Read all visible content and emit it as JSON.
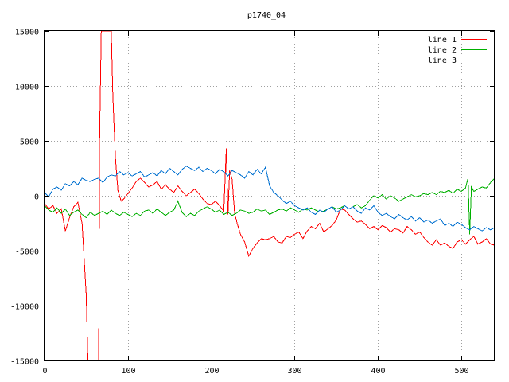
{
  "chart_data": {
    "type": "line",
    "title": "p1740_04",
    "xlabel": "",
    "ylabel": "",
    "xlim": [
      0,
      540
    ],
    "ylim": [
      -15000,
      15000
    ],
    "x_ticks": [
      0,
      100,
      200,
      300,
      400,
      500
    ],
    "y_ticks": [
      -15000,
      -10000,
      -5000,
      0,
      5000,
      10000,
      15000
    ],
    "grid": true,
    "legend_position": "top-right",
    "series": [
      {
        "name": "line 1",
        "color": "#ff0000",
        "x": [
          0,
          5,
          10,
          15,
          20,
          25,
          30,
          35,
          40,
          45,
          50,
          52,
          55,
          60,
          65,
          66,
          68,
          70,
          75,
          80,
          82,
          85,
          88,
          92,
          95,
          100,
          105,
          110,
          115,
          120,
          125,
          130,
          135,
          140,
          145,
          150,
          155,
          160,
          165,
          170,
          175,
          180,
          185,
          190,
          195,
          200,
          205,
          210,
          215,
          218,
          220,
          222,
          225,
          228,
          231,
          235,
          240,
          245,
          250,
          255,
          260,
          265,
          270,
          275,
          280,
          285,
          290,
          295,
          300,
          305,
          310,
          315,
          320,
          325,
          330,
          335,
          340,
          345,
          350,
          355,
          360,
          365,
          370,
          375,
          380,
          385,
          390,
          395,
          400,
          405,
          410,
          415,
          420,
          425,
          430,
          435,
          440,
          445,
          450,
          455,
          460,
          465,
          470,
          475,
          480,
          485,
          490,
          495,
          500,
          505,
          510,
          515,
          520,
          525,
          530,
          535,
          540
        ],
        "values": [
          -700,
          -1200,
          -900,
          -1600,
          -1200,
          -3200,
          -2000,
          -1000,
          -600,
          -2500,
          -9000,
          -15000,
          -15000,
          -15000,
          -15000,
          5000,
          15000,
          15000,
          15000,
          15000,
          9000,
          3500,
          500,
          -500,
          -300,
          200,
          700,
          1300,
          1600,
          1200,
          800,
          1000,
          1300,
          600,
          1000,
          600,
          300,
          900,
          400,
          0,
          300,
          600,
          200,
          -300,
          -700,
          -800,
          -500,
          -900,
          -1400,
          4300,
          -1700,
          2300,
          1500,
          -1600,
          -2500,
          -3500,
          -4200,
          -5500,
          -4800,
          -4300,
          -3900,
          -4000,
          -3900,
          -3700,
          -4200,
          -4300,
          -3700,
          -3800,
          -3500,
          -3300,
          -3900,
          -3200,
          -2800,
          -3000,
          -2500,
          -3300,
          -3000,
          -2700,
          -2200,
          -1200,
          -1300,
          -1700,
          -2100,
          -2400,
          -2300,
          -2600,
          -3000,
          -2800,
          -3100,
          -2700,
          -2900,
          -3300,
          -3000,
          -3100,
          -3400,
          -2800,
          -3100,
          -3500,
          -3300,
          -3800,
          -4200,
          -4500,
          -4000,
          -4500,
          -4300,
          -4600,
          -4800,
          -4200,
          -4000,
          -4400,
          -4000,
          -3700,
          -4400,
          -4200,
          -3900,
          -4400,
          -4500
        ]
      },
      {
        "name": "line 2",
        "color": "#00b000",
        "x": [
          0,
          5,
          10,
          15,
          20,
          25,
          30,
          35,
          40,
          45,
          50,
          55,
          60,
          65,
          70,
          75,
          80,
          85,
          90,
          95,
          100,
          105,
          110,
          115,
          120,
          125,
          130,
          135,
          140,
          145,
          150,
          155,
          160,
          165,
          170,
          175,
          180,
          185,
          190,
          195,
          200,
          205,
          210,
          215,
          220,
          225,
          230,
          235,
          240,
          245,
          250,
          255,
          260,
          265,
          270,
          275,
          280,
          285,
          290,
          295,
          300,
          305,
          310,
          315,
          320,
          325,
          330,
          335,
          340,
          345,
          350,
          355,
          360,
          365,
          370,
          375,
          380,
          385,
          390,
          395,
          400,
          405,
          410,
          415,
          420,
          425,
          430,
          435,
          440,
          445,
          450,
          455,
          460,
          465,
          470,
          475,
          480,
          485,
          490,
          495,
          500,
          505,
          508,
          510,
          512,
          515,
          520,
          525,
          530,
          535,
          540
        ],
        "values": [
          -900,
          -1300,
          -1500,
          -1100,
          -1600,
          -1200,
          -1800,
          -1500,
          -1300,
          -1700,
          -2000,
          -1500,
          -1800,
          -1600,
          -1400,
          -1700,
          -1300,
          -1600,
          -1800,
          -1500,
          -1700,
          -1900,
          -1600,
          -1800,
          -1400,
          -1300,
          -1600,
          -1200,
          -1500,
          -1800,
          -1500,
          -1300,
          -500,
          -1500,
          -1900,
          -1600,
          -1800,
          -1400,
          -1200,
          -1000,
          -1200,
          -1500,
          -1300,
          -1700,
          -1500,
          -1800,
          -1600,
          -1300,
          -1400,
          -1600,
          -1500,
          -1200,
          -1400,
          -1300,
          -1700,
          -1500,
          -1300,
          -1200,
          -1400,
          -1100,
          -1300,
          -1500,
          -1200,
          -1300,
          -1100,
          -1300,
          -1500,
          -1400,
          -1200,
          -1000,
          -1200,
          -1100,
          -900,
          -1200,
          -1000,
          -800,
          -1100,
          -900,
          -400,
          0,
          -200,
          100,
          -300,
          0,
          -200,
          -500,
          -300,
          -100,
          100,
          -100,
          0,
          200,
          100,
          300,
          100,
          400,
          300,
          500,
          200,
          600,
          400,
          700,
          1600,
          -3500,
          800,
          400,
          600,
          800,
          700,
          1200,
          1600
        ]
      },
      {
        "name": "line 3",
        "color": "#0070d0",
        "x": [
          0,
          5,
          10,
          15,
          20,
          25,
          30,
          35,
          40,
          45,
          50,
          55,
          60,
          65,
          70,
          75,
          80,
          85,
          90,
          95,
          100,
          105,
          110,
          115,
          120,
          125,
          130,
          135,
          140,
          145,
          150,
          155,
          160,
          165,
          170,
          175,
          180,
          185,
          190,
          195,
          200,
          205,
          210,
          215,
          220,
          225,
          230,
          235,
          240,
          245,
          250,
          255,
          260,
          265,
          270,
          275,
          280,
          285,
          290,
          295,
          300,
          305,
          310,
          315,
          320,
          325,
          330,
          335,
          340,
          345,
          350,
          355,
          360,
          365,
          370,
          375,
          380,
          385,
          390,
          395,
          400,
          405,
          410,
          415,
          420,
          425,
          430,
          435,
          440,
          445,
          450,
          455,
          460,
          465,
          470,
          475,
          480,
          485,
          490,
          495,
          500,
          505,
          510,
          515,
          520,
          525,
          530,
          535,
          540
        ],
        "values": [
          300,
          -100,
          600,
          800,
          500,
          1100,
          900,
          1300,
          1000,
          1600,
          1400,
          1300,
          1500,
          1600,
          1200,
          1700,
          1900,
          1800,
          2200,
          1900,
          2100,
          1800,
          2000,
          2200,
          1700,
          1900,
          2100,
          1800,
          2300,
          2000,
          2500,
          2200,
          1900,
          2400,
          2700,
          2500,
          2300,
          2600,
          2200,
          2500,
          2300,
          2000,
          2400,
          2200,
          1800,
          2300,
          2100,
          1900,
          1600,
          2200,
          1900,
          2400,
          2000,
          2600,
          900,
          300,
          0,
          -400,
          -700,
          -500,
          -900,
          -1100,
          -1300,
          -1100,
          -1500,
          -1700,
          -1300,
          -1500,
          -1200,
          -1000,
          -1500,
          -1300,
          -900,
          -1200,
          -1000,
          -1400,
          -1600,
          -1100,
          -1300,
          -900,
          -1500,
          -1800,
          -1600,
          -1900,
          -2100,
          -1700,
          -2000,
          -2200,
          -1900,
          -2300,
          -2000,
          -2400,
          -2200,
          -2500,
          -2300,
          -2100,
          -2700,
          -2500,
          -2800,
          -2400,
          -2600,
          -2900,
          -3100,
          -2800,
          -3000,
          -3200,
          -2900,
          -3100,
          -2900
        ]
      }
    ]
  }
}
